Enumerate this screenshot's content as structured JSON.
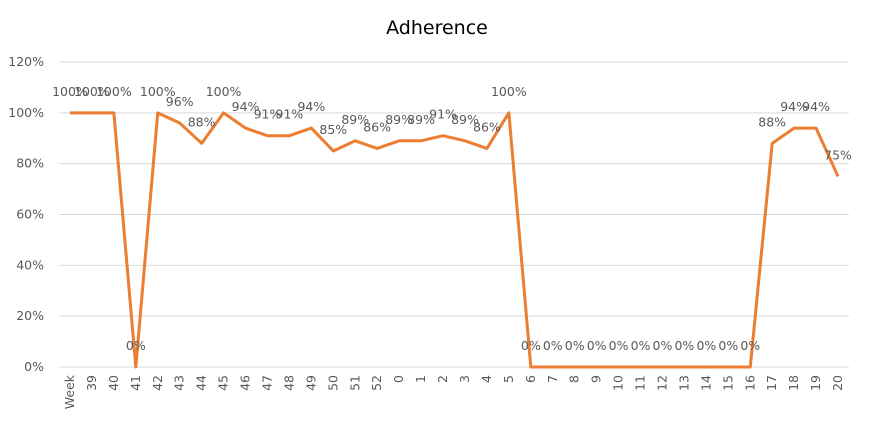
{
  "chart_data": {
    "type": "line",
    "title": "Adherence",
    "categories": [
      "Week",
      "39",
      "40",
      "41",
      "42",
      "43",
      "44",
      "45",
      "46",
      "47",
      "48",
      "49",
      "50",
      "51",
      "52",
      "0",
      "1",
      "2",
      "3",
      "4",
      "5",
      "6",
      "7",
      "8",
      "9",
      "10",
      "11",
      "12",
      "13",
      "14",
      "15",
      "16",
      "17",
      "18",
      "19",
      "20"
    ],
    "values": [
      100,
      100,
      100,
      0,
      100,
      96,
      88,
      100,
      94,
      91,
      91,
      94,
      85,
      89,
      86,
      89,
      89,
      91,
      89,
      86,
      100,
      0,
      0,
      0,
      0,
      0,
      0,
      0,
      0,
      0,
      0,
      0,
      88,
      94,
      94,
      75
    ],
    "value_labels": [
      "100%",
      "100%",
      "100%",
      "0%",
      "100%",
      "96%",
      "88%",
      "100%",
      "94%",
      "91%",
      "91%",
      "94%",
      "85%",
      "89%",
      "86%",
      "89%",
      "89%",
      "91%",
      "89%",
      "86%",
      "100%",
      "0%",
      "0%",
      "0%",
      "0%",
      "0%",
      "0%",
      "0%",
      "0%",
      "0%",
      "0%",
      "0%",
      "88%",
      "94%",
      "94%",
      "75%"
    ],
    "color": "#ED7D31",
    "ylim": [
      0,
      120
    ],
    "yticks": [
      {
        "value": 0,
        "label": "0%"
      },
      {
        "value": 20,
        "label": "20%"
      },
      {
        "value": 40,
        "label": "40%"
      },
      {
        "value": 60,
        "label": "60%"
      },
      {
        "value": 80,
        "label": "80%"
      },
      {
        "value": 100,
        "label": "100%"
      },
      {
        "value": 120,
        "label": "120%"
      }
    ],
    "grid": true
  }
}
